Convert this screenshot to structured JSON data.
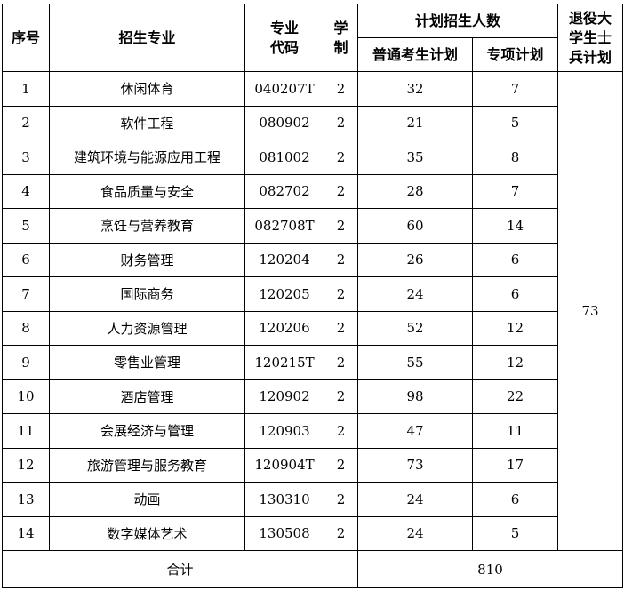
{
  "headers": {
    "index": "序号",
    "major": "招生专业",
    "code": "专业\n代码",
    "code_l1": "专业",
    "code_l2": "代码",
    "years_l1": "学",
    "years_l2": "制",
    "plan": "计划招生人数",
    "general": "普通考生计划",
    "special": "专项计划",
    "veteran_l1": "退役大",
    "veteran_l2": "学生士",
    "veteran_l3": "兵计划"
  },
  "rows": [
    {
      "no": "1",
      "major": "休闲体育",
      "code": "040207T",
      "years": "2",
      "general": "32",
      "special": "7"
    },
    {
      "no": "2",
      "major": "软件工程",
      "code": "080902",
      "years": "2",
      "general": "21",
      "special": "5"
    },
    {
      "no": "3",
      "major": "建筑环境与能源应用工程",
      "code": "081002",
      "years": "2",
      "general": "35",
      "special": "8"
    },
    {
      "no": "4",
      "major": "食品质量与安全",
      "code": "082702",
      "years": "2",
      "general": "28",
      "special": "7"
    },
    {
      "no": "5",
      "major": "烹饪与营养教育",
      "code": "082708T",
      "years": "2",
      "general": "60",
      "special": "14"
    },
    {
      "no": "6",
      "major": "财务管理",
      "code": "120204",
      "years": "2",
      "general": "26",
      "special": "6"
    },
    {
      "no": "7",
      "major": "国际商务",
      "code": "120205",
      "years": "2",
      "general": "24",
      "special": "6"
    },
    {
      "no": "8",
      "major": "人力资源管理",
      "code": "120206",
      "years": "2",
      "general": "52",
      "special": "12"
    },
    {
      "no": "9",
      "major": "零售业管理",
      "code": "120215T",
      "years": "2",
      "general": "55",
      "special": "12"
    },
    {
      "no": "10",
      "major": "酒店管理",
      "code": "120902",
      "years": "2",
      "general": "98",
      "special": "22"
    },
    {
      "no": "11",
      "major": "会展经济与管理",
      "code": "120903",
      "years": "2",
      "general": "47",
      "special": "11"
    },
    {
      "no": "12",
      "major": "旅游管理与服务教育",
      "code": "120904T",
      "years": "2",
      "general": "73",
      "special": "17"
    },
    {
      "no": "13",
      "major": "动画",
      "code": "130310",
      "years": "2",
      "general": "24",
      "special": "6"
    },
    {
      "no": "14",
      "major": "数字媒体艺术",
      "code": "130508",
      "years": "2",
      "general": "24",
      "special": "5"
    }
  ],
  "veteran_total": "73",
  "total": {
    "label": "合计",
    "value": "810"
  }
}
